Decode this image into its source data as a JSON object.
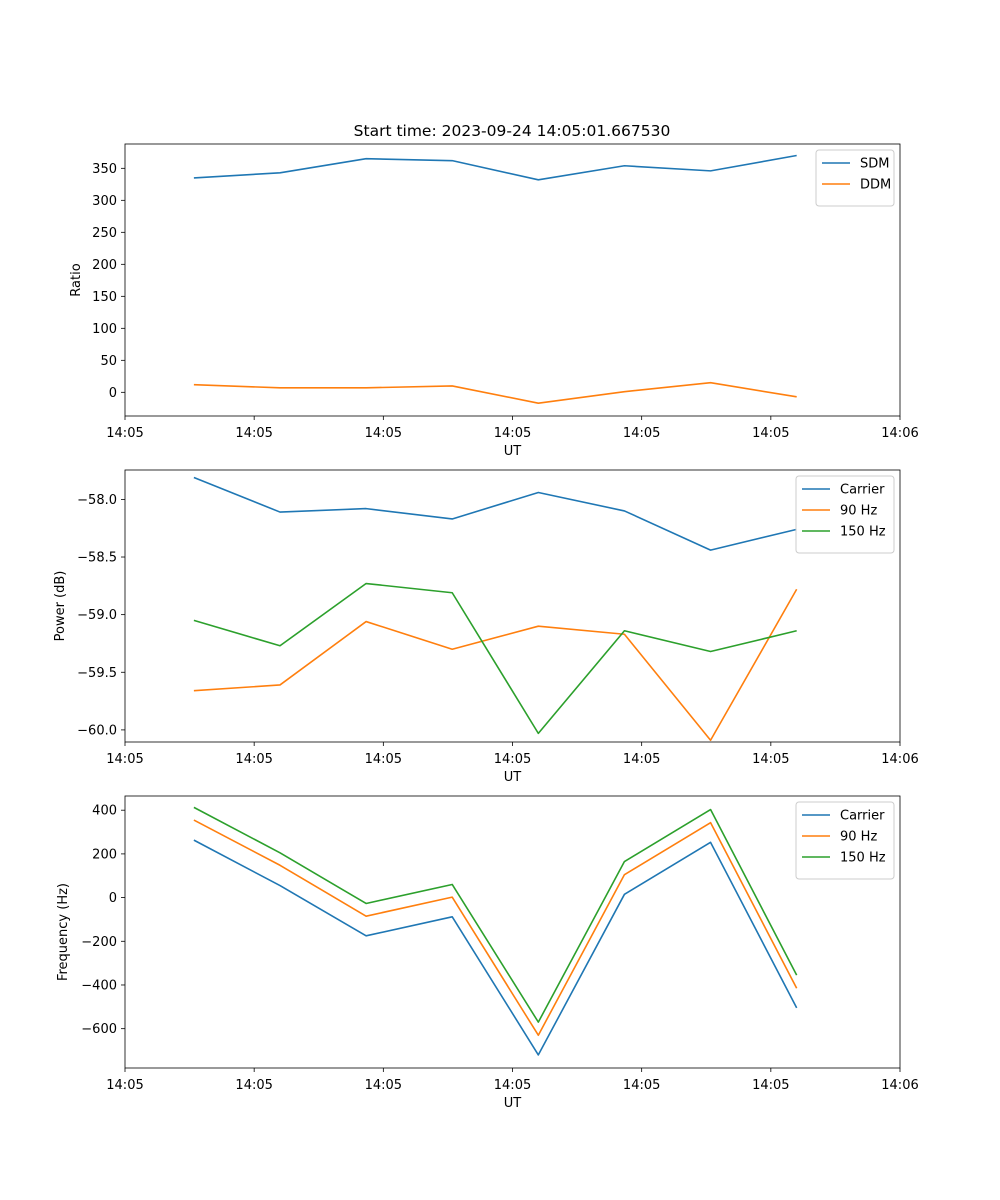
{
  "figure_title": "Start time: 2023-09-24 14:05:01.667530",
  "colors": {
    "blue": "#1f77b4",
    "orange": "#ff7f0e",
    "green": "#2ca02c"
  },
  "chart_data": [
    {
      "type": "line",
      "title": "Start time: 2023-09-24 14:05:01.667530",
      "xlabel": "UT",
      "ylabel": "Ratio",
      "x": [
        1,
        2,
        3,
        4,
        5,
        6,
        7,
        8
      ],
      "xlim": [
        0.2,
        9.2
      ],
      "x_ticks": [
        0.2,
        1.7,
        3.2,
        4.7,
        6.2,
        7.7,
        9.2
      ],
      "x_tick_labels": [
        "14:05",
        "14:05",
        "14:05",
        "14:05",
        "14:05",
        "14:05",
        "14:06"
      ],
      "ylim": [
        -37,
        388
      ],
      "y_ticks": [
        0,
        50,
        100,
        150,
        200,
        250,
        300,
        350
      ],
      "y_tick_labels": [
        "0",
        "50",
        "100",
        "150",
        "200",
        "250",
        "300",
        "350"
      ],
      "legend_position": "top-right",
      "series": [
        {
          "name": "SDM",
          "color": "#1f77b4",
          "values": [
            335,
            343,
            365,
            362,
            332,
            354,
            346,
            370
          ]
        },
        {
          "name": "DDM",
          "color": "#ff7f0e",
          "values": [
            12,
            7,
            7,
            10,
            -17,
            1,
            15,
            -7
          ]
        }
      ]
    },
    {
      "type": "line",
      "title": "",
      "xlabel": "UT",
      "ylabel": "Power (dB)",
      "x": [
        1,
        2,
        3,
        4,
        5,
        6,
        7,
        8
      ],
      "xlim": [
        0.2,
        9.2
      ],
      "x_ticks": [
        0.2,
        1.7,
        3.2,
        4.7,
        6.2,
        7.7,
        9.2
      ],
      "x_tick_labels": [
        "14:05",
        "14:05",
        "14:05",
        "14:05",
        "14:05",
        "14:05",
        "14:06"
      ],
      "ylim": [
        -60.105,
        -57.745
      ],
      "y_ticks": [
        -60.0,
        -59.5,
        -59.0,
        -58.5,
        -58.0
      ],
      "y_tick_labels": [
        "−60.0",
        "−59.5",
        "−59.0",
        "−58.5",
        "−58.0"
      ],
      "legend_position": "top-right",
      "series": [
        {
          "name": "Carrier",
          "color": "#1f77b4",
          "values": [
            -57.81,
            -58.11,
            -58.08,
            -58.17,
            -57.94,
            -58.1,
            -58.44,
            -58.26
          ]
        },
        {
          "name": "90 Hz",
          "color": "#ff7f0e",
          "values": [
            -59.66,
            -59.61,
            -59.06,
            -59.3,
            -59.1,
            -59.17,
            -60.09,
            -58.78
          ]
        },
        {
          "name": "150 Hz",
          "color": "#2ca02c",
          "values": [
            -59.05,
            -59.27,
            -58.73,
            -58.81,
            -60.03,
            -59.14,
            -59.32,
            -59.14
          ]
        }
      ]
    },
    {
      "type": "line",
      "title": "",
      "xlabel": "UT",
      "ylabel": "Frequency (Hz)",
      "x": [
        1,
        2,
        3,
        4,
        5,
        6,
        7,
        8
      ],
      "xlim": [
        0.2,
        9.2
      ],
      "x_ticks": [
        0.2,
        1.7,
        3.2,
        4.7,
        6.2,
        7.7,
        9.2
      ],
      "x_tick_labels": [
        "14:05",
        "14:05",
        "14:05",
        "14:05",
        "14:05",
        "14:05",
        "14:06"
      ],
      "ylim": [
        -780,
        465
      ],
      "y_ticks": [
        -600,
        -400,
        -200,
        0,
        200,
        400
      ],
      "y_tick_labels": [
        "−600",
        "−400",
        "−200",
        "0",
        "200",
        "400"
      ],
      "legend_position": "top-right",
      "series": [
        {
          "name": "Carrier",
          "color": "#1f77b4",
          "values": [
            263,
            55,
            -175,
            -88,
            -720,
            15,
            253,
            -505
          ]
        },
        {
          "name": "90 Hz",
          "color": "#ff7f0e",
          "values": [
            355,
            148,
            -85,
            2,
            -630,
            105,
            343,
            -415
          ]
        },
        {
          "name": "150 Hz",
          "color": "#2ca02c",
          "values": [
            413,
            205,
            -27,
            60,
            -570,
            165,
            403,
            -355
          ]
        }
      ]
    }
  ]
}
